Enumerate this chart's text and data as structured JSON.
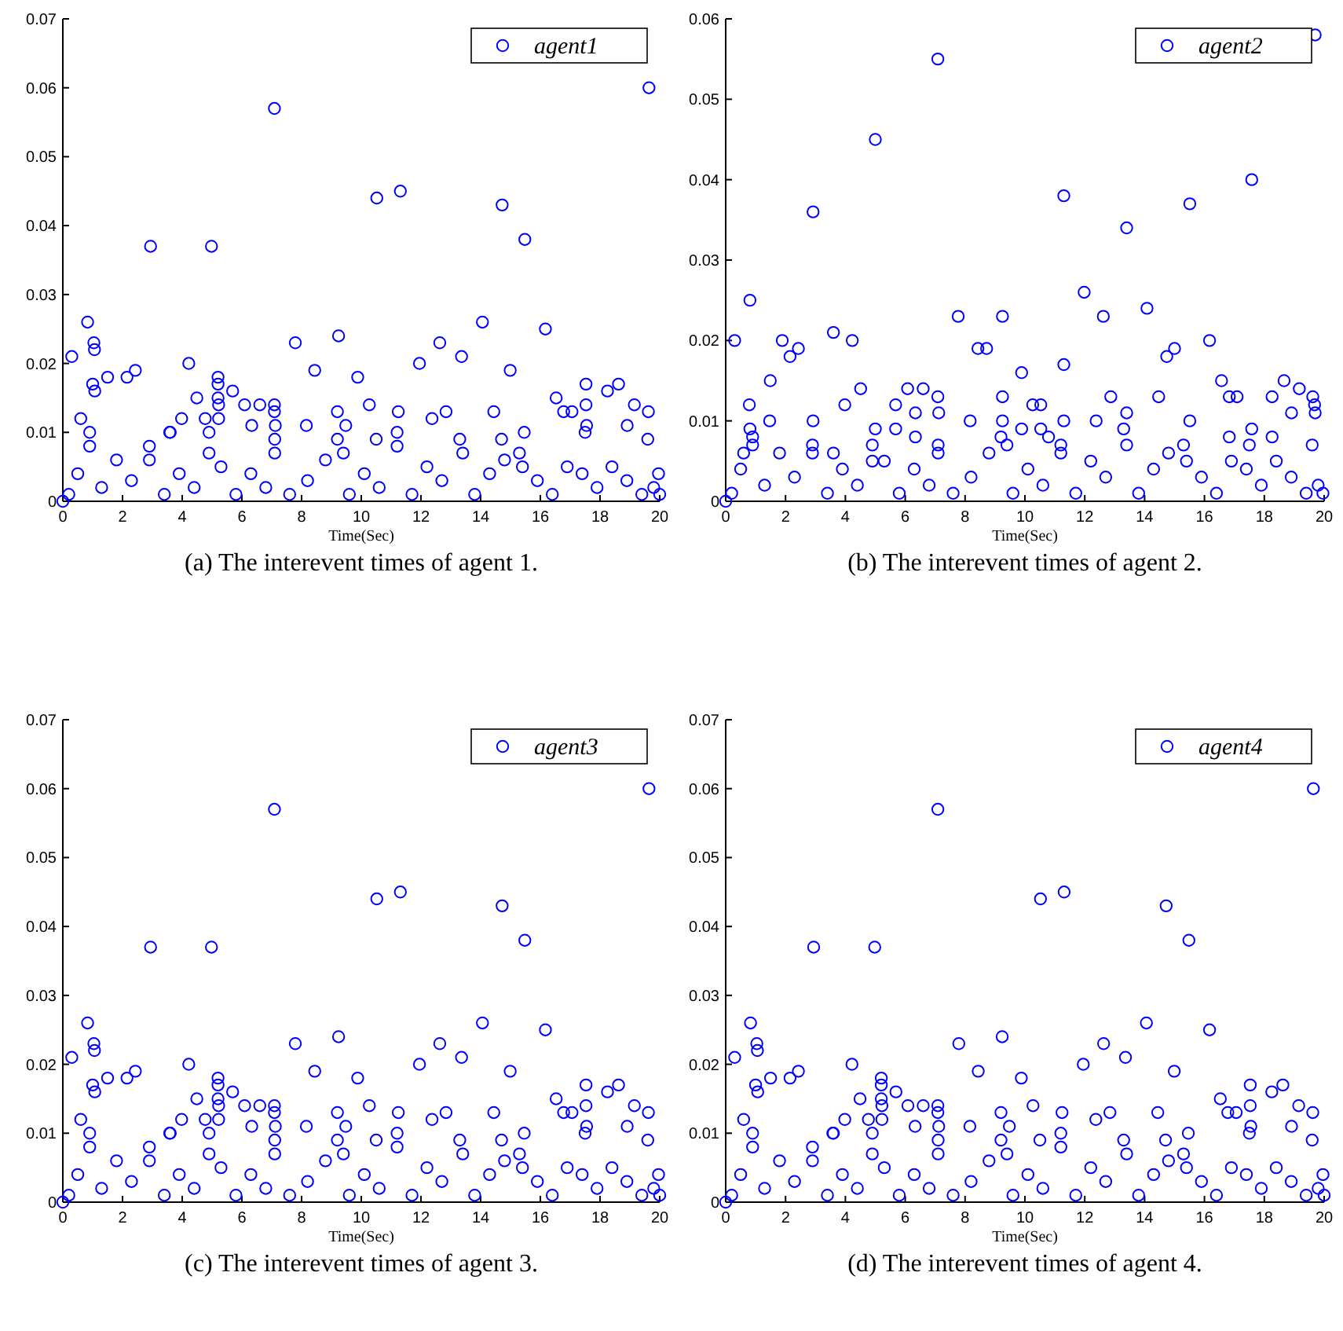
{
  "chart_data": [
    {
      "type": "scatter",
      "xlabel": "Time(Sec)",
      "annotations": [
        "(a) The interevent times of agent 1."
      ],
      "xlim": [
        0,
        20
      ],
      "xticks": [
        0,
        2,
        4,
        6,
        8,
        10,
        12,
        14,
        16,
        18,
        20
      ],
      "ylim": [
        0,
        0.07
      ],
      "yticks": [
        0,
        0.01,
        0.02,
        0.03,
        0.04,
        0.05,
        0.06,
        0.07
      ],
      "marker": "circle",
      "legend": "top right",
      "series": [
        {
          "name": "agent1",
          "color": "#0000ff",
          "x": [
            0,
            0.3,
            0.83,
            1.0,
            1.04,
            1.06,
            1.07,
            1.5,
            2.15,
            2.43,
            2.94,
            3.58,
            3.98,
            4.22,
            4.49,
            4.77,
            4.98,
            5.2,
            5.2,
            5.2,
            5.22,
            5.22,
            5.69,
            6.09,
            6.33,
            6.6,
            7.09,
            7.09,
            7.09,
            7.12,
            7.79,
            8.16,
            8.44,
            9.2,
            9.24,
            9.48,
            9.88,
            10.27,
            10.5,
            10.52,
            11.24,
            11.31,
            11.95,
            12.37,
            12.63,
            12.84,
            13.36,
            14.06,
            14.44,
            14.7,
            14.72,
            14.99,
            15.46,
            15.48,
            16.17,
            16.53,
            16.78,
            17.06,
            17.53,
            17.53,
            17.55,
            18.25,
            18.62,
            18.91,
            19.15,
            19.62,
            19.64,
            19.96,
            20,
            0.2,
            0.5,
            0.6,
            0.9,
            0.9,
            1.3,
            1.8,
            2.3,
            2.9,
            2.9,
            3.4,
            3.6,
            3.9,
            4.4,
            4.9,
            4.9,
            5.3,
            5.8,
            6.3,
            6.8,
            7.1,
            7.1,
            7.6,
            8.2,
            8.8,
            9.2,
            9.4,
            9.6,
            10.1,
            10.6,
            11.2,
            11.2,
            11.7,
            12.2,
            12.7,
            13.3,
            13.4,
            13.8,
            14.3,
            14.8,
            15.3,
            15.4,
            15.9,
            16.4,
            16.9,
            17.4,
            17.5,
            17.9,
            18.4,
            18.9,
            19.4,
            19.6,
            19.8
          ],
          "values": [
            0,
            0.021,
            0.026,
            0.017,
            0.023,
            0.022,
            0.016,
            0.018,
            0.018,
            0.019,
            0.037,
            0.01,
            0.012,
            0.02,
            0.015,
            0.012,
            0.037,
            0.018,
            0.017,
            0.015,
            0.014,
            0.012,
            0.016,
            0.014,
            0.011,
            0.014,
            0.057,
            0.014,
            0.013,
            0.011,
            0.023,
            0.011,
            0.019,
            0.013,
            0.024,
            0.011,
            0.018,
            0.014,
            0.009,
            0.044,
            0.013,
            0.045,
            0.02,
            0.012,
            0.023,
            0.013,
            0.021,
            0.026,
            0.013,
            0.009,
            0.043,
            0.019,
            0.01,
            0.038,
            0.025,
            0.015,
            0.013,
            0.013,
            0.017,
            0.014,
            0.011,
            0.016,
            0.017,
            0.011,
            0.014,
            0.013,
            0.06,
            0.004,
            0.001,
            0.001,
            0.004,
            0.012,
            0.01,
            0.008,
            0.002,
            0.006,
            0.003,
            0.008,
            0.006,
            0.001,
            0.01,
            0.004,
            0.002,
            0.01,
            0.007,
            0.005,
            0.001,
            0.004,
            0.002,
            0.009,
            0.007,
            0.001,
            0.003,
            0.006,
            0.009,
            0.007,
            0.001,
            0.004,
            0.002,
            0.01,
            0.008,
            0.001,
            0.005,
            0.003,
            0.009,
            0.007,
            0.001,
            0.004,
            0.006,
            0.007,
            0.005,
            0.003,
            0.001,
            0.005,
            0.004,
            0.01,
            0.002,
            0.005,
            0.003,
            0.001,
            0.009,
            0.002
          ]
        }
      ]
    },
    {
      "type": "scatter",
      "xlabel": "Time(Sec)",
      "annotations": [
        "(b) The interevent times of agent 2."
      ],
      "xlim": [
        0,
        20
      ],
      "xticks": [
        0,
        2,
        4,
        6,
        8,
        10,
        12,
        14,
        16,
        18,
        20
      ],
      "ylim": [
        0,
        0.06
      ],
      "yticks": [
        0,
        0.01,
        0.02,
        0.03,
        0.04,
        0.05,
        0.06
      ],
      "marker": "circle",
      "legend": "top right",
      "series": [
        {
          "name": "agent2",
          "color": "#0000ff",
          "x": [
            0,
            0.3,
            0.79,
            0.81,
            0.81,
            1.47,
            1.49,
            1.89,
            2.15,
            2.43,
            2.92,
            2.92,
            3.6,
            3.98,
            4.23,
            4.51,
            5.0,
            5.0,
            5.68,
            5.68,
            6.08,
            6.34,
            6.34,
            6.6,
            7.09,
            7.09,
            7.12,
            7.77,
            8.17,
            8.43,
            8.72,
            9.25,
            9.25,
            9.25,
            9.89,
            9.89,
            10.26,
            10.53,
            10.53,
            10.79,
            11.3,
            11.3,
            11.3,
            11.98,
            12.38,
            12.62,
            12.87,
            13.4,
            13.4,
            14.08,
            14.47,
            14.74,
            15.0,
            15.51,
            15.51,
            16.17,
            16.57,
            16.83,
            16.83,
            17.09,
            17.58,
            17.58,
            18.26,
            18.26,
            18.66,
            18.91,
            19.17,
            19.62,
            19.68,
            19.7,
            19.7,
            19.96,
            0.2,
            0.5,
            0.6,
            0.9,
            0.9,
            1.3,
            1.8,
            2.3,
            2.9,
            2.9,
            3.4,
            3.6,
            3.9,
            4.4,
            4.9,
            4.9,
            5.3,
            5.8,
            6.3,
            6.8,
            7.1,
            7.1,
            7.6,
            8.2,
            8.8,
            9.2,
            9.4,
            9.6,
            10.1,
            10.6,
            11.2,
            11.2,
            11.7,
            12.2,
            12.7,
            13.3,
            13.4,
            13.8,
            14.3,
            14.8,
            15.3,
            15.4,
            15.9,
            16.4,
            16.9,
            17.4,
            17.5,
            17.9,
            18.4,
            18.9,
            19.4,
            19.6,
            19.8
          ],
          "values": [
            0,
            0.02,
            0.012,
            0.025,
            0.009,
            0.01,
            0.015,
            0.02,
            0.018,
            0.019,
            0.036,
            0.01,
            0.021,
            0.012,
            0.02,
            0.014,
            0.045,
            0.009,
            0.012,
            0.009,
            0.014,
            0.011,
            0.008,
            0.014,
            0.055,
            0.013,
            0.011,
            0.023,
            0.01,
            0.019,
            0.019,
            0.023,
            0.013,
            0.01,
            0.016,
            0.009,
            0.012,
            0.012,
            0.009,
            0.008,
            0.038,
            0.017,
            0.01,
            0.026,
            0.01,
            0.023,
            0.013,
            0.034,
            0.011,
            0.024,
            0.013,
            0.018,
            0.019,
            0.037,
            0.01,
            0.02,
            0.015,
            0.013,
            0.008,
            0.013,
            0.04,
            0.009,
            0.013,
            0.008,
            0.015,
            0.011,
            0.014,
            0.013,
            0.012,
            0.058,
            0.011,
            0.001,
            0.001,
            0.004,
            0.006,
            0.008,
            0.007,
            0.002,
            0.006,
            0.003,
            0.007,
            0.006,
            0.001,
            0.006,
            0.004,
            0.002,
            0.007,
            0.005,
            0.005,
            0.001,
            0.004,
            0.002,
            0.007,
            0.006,
            0.001,
            0.003,
            0.006,
            0.008,
            0.007,
            0.001,
            0.004,
            0.002,
            0.007,
            0.006,
            0.001,
            0.005,
            0.003,
            0.009,
            0.007,
            0.001,
            0.004,
            0.006,
            0.007,
            0.005,
            0.003,
            0.001,
            0.005,
            0.004,
            0.007,
            0.002,
            0.005,
            0.003,
            0.001,
            0.007,
            0.002
          ]
        }
      ]
    },
    {
      "type": "scatter",
      "xlabel": "Time(Sec)",
      "annotations": [
        "(c) The interevent times of agent 3."
      ],
      "xlim": [
        0,
        20
      ],
      "xticks": [
        0,
        2,
        4,
        6,
        8,
        10,
        12,
        14,
        16,
        18,
        20
      ],
      "ylim": [
        0,
        0.07
      ],
      "yticks": [
        0,
        0.01,
        0.02,
        0.03,
        0.04,
        0.05,
        0.06,
        0.07
      ],
      "marker": "circle",
      "legend": "top right",
      "series": [
        {
          "name": "agent3",
          "color": "#0000ff",
          "x": [
            0,
            0.3,
            0.83,
            1.0,
            1.04,
            1.06,
            1.07,
            1.5,
            2.15,
            2.43,
            2.94,
            3.58,
            3.98,
            4.22,
            4.49,
            4.77,
            4.98,
            5.2,
            5.2,
            5.2,
            5.22,
            5.22,
            5.69,
            6.09,
            6.33,
            6.6,
            7.09,
            7.09,
            7.09,
            7.12,
            7.79,
            8.16,
            8.44,
            9.2,
            9.24,
            9.48,
            9.88,
            10.27,
            10.5,
            10.52,
            11.24,
            11.31,
            11.95,
            12.37,
            12.63,
            12.84,
            13.36,
            14.06,
            14.44,
            14.7,
            14.72,
            14.99,
            15.46,
            15.48,
            16.17,
            16.53,
            16.78,
            17.06,
            17.53,
            17.53,
            17.55,
            18.25,
            18.62,
            18.91,
            19.15,
            19.62,
            19.64,
            19.96,
            20,
            0.2,
            0.5,
            0.6,
            0.9,
            0.9,
            1.3,
            1.8,
            2.3,
            2.9,
            2.9,
            3.4,
            3.6,
            3.9,
            4.4,
            4.9,
            4.9,
            5.3,
            5.8,
            6.3,
            6.8,
            7.1,
            7.1,
            7.6,
            8.2,
            8.8,
            9.2,
            9.4,
            9.6,
            10.1,
            10.6,
            11.2,
            11.2,
            11.7,
            12.2,
            12.7,
            13.3,
            13.4,
            13.8,
            14.3,
            14.8,
            15.3,
            15.4,
            15.9,
            16.4,
            16.9,
            17.4,
            17.5,
            17.9,
            18.4,
            18.9,
            19.4,
            19.6,
            19.8
          ],
          "values": [
            0,
            0.021,
            0.026,
            0.017,
            0.023,
            0.022,
            0.016,
            0.018,
            0.018,
            0.019,
            0.037,
            0.01,
            0.012,
            0.02,
            0.015,
            0.012,
            0.037,
            0.018,
            0.017,
            0.015,
            0.014,
            0.012,
            0.016,
            0.014,
            0.011,
            0.014,
            0.057,
            0.014,
            0.013,
            0.011,
            0.023,
            0.011,
            0.019,
            0.013,
            0.024,
            0.011,
            0.018,
            0.014,
            0.009,
            0.044,
            0.013,
            0.045,
            0.02,
            0.012,
            0.023,
            0.013,
            0.021,
            0.026,
            0.013,
            0.009,
            0.043,
            0.019,
            0.01,
            0.038,
            0.025,
            0.015,
            0.013,
            0.013,
            0.017,
            0.014,
            0.011,
            0.016,
            0.017,
            0.011,
            0.014,
            0.013,
            0.06,
            0.004,
            0.001,
            0.001,
            0.004,
            0.012,
            0.01,
            0.008,
            0.002,
            0.006,
            0.003,
            0.008,
            0.006,
            0.001,
            0.01,
            0.004,
            0.002,
            0.01,
            0.007,
            0.005,
            0.001,
            0.004,
            0.002,
            0.009,
            0.007,
            0.001,
            0.003,
            0.006,
            0.009,
            0.007,
            0.001,
            0.004,
            0.002,
            0.01,
            0.008,
            0.001,
            0.005,
            0.003,
            0.009,
            0.007,
            0.001,
            0.004,
            0.006,
            0.007,
            0.005,
            0.003,
            0.001,
            0.005,
            0.004,
            0.01,
            0.002,
            0.005,
            0.003,
            0.001,
            0.009,
            0.002
          ]
        }
      ]
    },
    {
      "type": "scatter",
      "xlabel": "Time(Sec)",
      "annotations": [
        "(d) The interevent times of agent 4."
      ],
      "xlim": [
        0,
        20
      ],
      "xticks": [
        0,
        2,
        4,
        6,
        8,
        10,
        12,
        14,
        16,
        18,
        20
      ],
      "ylim": [
        0,
        0.07
      ],
      "yticks": [
        0,
        0.01,
        0.02,
        0.03,
        0.04,
        0.05,
        0.06,
        0.07
      ],
      "marker": "circle",
      "legend": "top right",
      "series": [
        {
          "name": "agent4",
          "color": "#0000ff",
          "x": [
            0,
            0.3,
            0.83,
            1.0,
            1.04,
            1.06,
            1.07,
            1.5,
            2.15,
            2.43,
            2.94,
            3.58,
            3.98,
            4.22,
            4.49,
            4.77,
            4.98,
            5.2,
            5.2,
            5.2,
            5.22,
            5.22,
            5.69,
            6.09,
            6.33,
            6.6,
            7.09,
            7.09,
            7.09,
            7.12,
            7.79,
            8.16,
            8.44,
            9.2,
            9.24,
            9.48,
            9.88,
            10.27,
            10.5,
            10.52,
            11.24,
            11.31,
            11.95,
            12.37,
            12.63,
            12.84,
            13.36,
            14.06,
            14.44,
            14.7,
            14.72,
            14.99,
            15.46,
            15.48,
            16.17,
            16.53,
            16.78,
            17.06,
            17.53,
            17.53,
            17.55,
            18.25,
            18.62,
            18.91,
            19.15,
            19.62,
            19.64,
            19.96,
            20,
            0.2,
            0.5,
            0.6,
            0.9,
            0.9,
            1.3,
            1.8,
            2.3,
            2.9,
            2.9,
            3.4,
            3.6,
            3.9,
            4.4,
            4.9,
            4.9,
            5.3,
            5.8,
            6.3,
            6.8,
            7.1,
            7.1,
            7.6,
            8.2,
            8.8,
            9.2,
            9.4,
            9.6,
            10.1,
            10.6,
            11.2,
            11.2,
            11.7,
            12.2,
            12.7,
            13.3,
            13.4,
            13.8,
            14.3,
            14.8,
            15.3,
            15.4,
            15.9,
            16.4,
            16.9,
            17.4,
            17.5,
            17.9,
            18.4,
            18.9,
            19.4,
            19.6,
            19.8
          ],
          "values": [
            0,
            0.021,
            0.026,
            0.017,
            0.023,
            0.022,
            0.016,
            0.018,
            0.018,
            0.019,
            0.037,
            0.01,
            0.012,
            0.02,
            0.015,
            0.012,
            0.037,
            0.018,
            0.017,
            0.015,
            0.014,
            0.012,
            0.016,
            0.014,
            0.011,
            0.014,
            0.057,
            0.014,
            0.013,
            0.011,
            0.023,
            0.011,
            0.019,
            0.013,
            0.024,
            0.011,
            0.018,
            0.014,
            0.009,
            0.044,
            0.013,
            0.045,
            0.02,
            0.012,
            0.023,
            0.013,
            0.021,
            0.026,
            0.013,
            0.009,
            0.043,
            0.019,
            0.01,
            0.038,
            0.025,
            0.015,
            0.013,
            0.013,
            0.017,
            0.014,
            0.011,
            0.016,
            0.017,
            0.011,
            0.014,
            0.013,
            0.06,
            0.004,
            0.001,
            0.001,
            0.004,
            0.012,
            0.01,
            0.008,
            0.002,
            0.006,
            0.003,
            0.008,
            0.006,
            0.001,
            0.01,
            0.004,
            0.002,
            0.01,
            0.007,
            0.005,
            0.001,
            0.004,
            0.002,
            0.009,
            0.007,
            0.001,
            0.003,
            0.006,
            0.009,
            0.007,
            0.001,
            0.004,
            0.002,
            0.01,
            0.008,
            0.001,
            0.005,
            0.003,
            0.009,
            0.007,
            0.001,
            0.004,
            0.006,
            0.007,
            0.005,
            0.003,
            0.001,
            0.005,
            0.004,
            0.01,
            0.002,
            0.005,
            0.003,
            0.001,
            0.009,
            0.002
          ]
        }
      ]
    }
  ]
}
